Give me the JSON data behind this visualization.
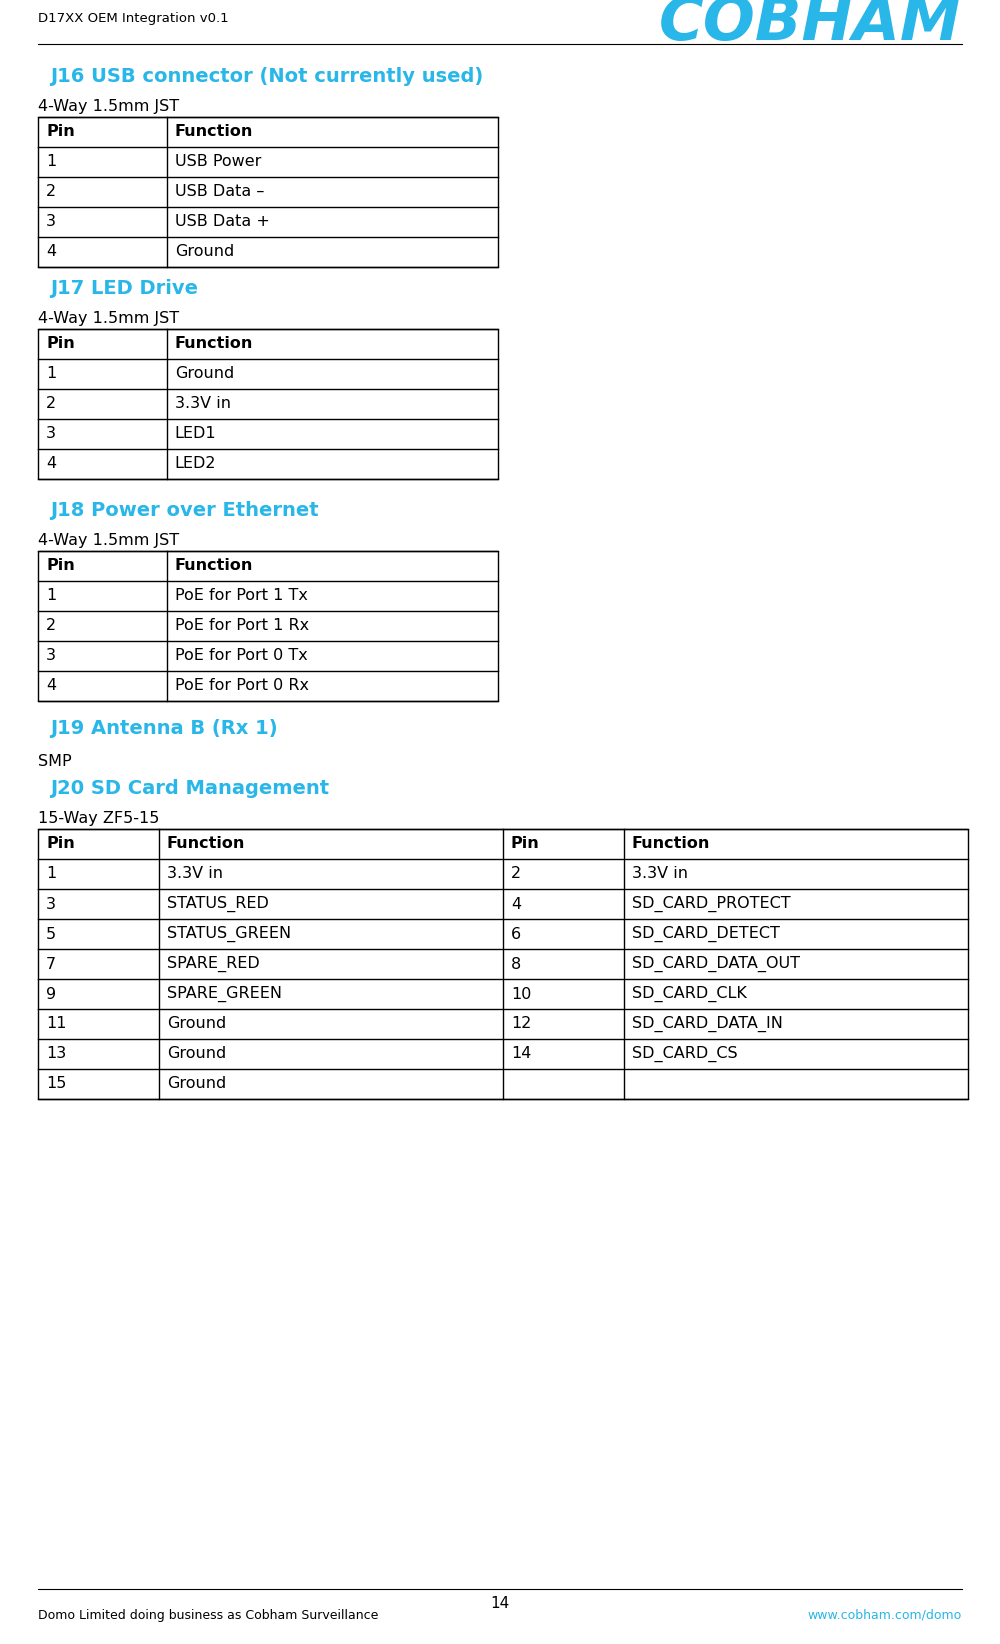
{
  "page_title": "D17XX OEM Integration v0.1",
  "page_number": "14",
  "footer_left": "Domo Limited doing business as Cobham Surveillance",
  "footer_right": "www.cobham.com/domo",
  "cobham_color": "#29b6e8",
  "header_color": "#29b6e8",
  "text_color": "#000000",
  "sections": [
    {
      "title": "J16 USB connector (Not currently used)",
      "subtitle": "4-Way 1.5mm JST",
      "type": "simple_table",
      "headers": [
        "Pin",
        "Function"
      ],
      "rows": [
        [
          "1",
          "USB Power"
        ],
        [
          "2",
          "USB Data –"
        ],
        [
          "3",
          "USB Data +"
        ],
        [
          "4",
          "Ground"
        ]
      ]
    },
    {
      "title": "J17 LED Drive",
      "subtitle": "4-Way 1.5mm JST",
      "type": "simple_table",
      "headers": [
        "Pin",
        "Function"
      ],
      "rows": [
        [
          "1",
          "Ground"
        ],
        [
          "2",
          "3.3V in"
        ],
        [
          "3",
          "LED1"
        ],
        [
          "4",
          "LED2"
        ]
      ]
    },
    {
      "title": "J18 Power over Ethernet",
      "subtitle": "4-Way 1.5mm JST",
      "type": "simple_table",
      "headers": [
        "Pin",
        "Function"
      ],
      "rows": [
        [
          "1",
          "PoE for Port 1 Tx"
        ],
        [
          "2",
          "PoE for Port 1 Rx"
        ],
        [
          "3",
          "PoE for Port 0 Tx"
        ],
        [
          "4",
          "PoE for Port 0 Rx"
        ]
      ]
    },
    {
      "title": "J19 Antenna B (Rx 1)",
      "subtitle": "SMP",
      "type": "text_only"
    },
    {
      "title": "J20 SD Card Management",
      "subtitle": "15-Way ZF5-15",
      "type": "double_table",
      "headers": [
        "Pin",
        "Function",
        "Pin",
        "Function"
      ],
      "rows": [
        [
          "1",
          "3.3V in",
          "2",
          "3.3V in"
        ],
        [
          "3",
          "STATUS_RED",
          "4",
          "SD_CARD_PROTECT"
        ],
        [
          "5",
          "STATUS_GREEN",
          "6",
          "SD_CARD_DETECT"
        ],
        [
          "7",
          "SPARE_RED",
          "8",
          "SD_CARD_DATA_OUT"
        ],
        [
          "9",
          "SPARE_GREEN",
          "10",
          "SD_CARD_CLK"
        ],
        [
          "11",
          "Ground",
          "12",
          "SD_CARD_DATA_IN"
        ],
        [
          "13",
          "Ground",
          "14",
          "SD_CARD_CS"
        ],
        [
          "15",
          "Ground",
          "",
          ""
        ]
      ]
    }
  ]
}
